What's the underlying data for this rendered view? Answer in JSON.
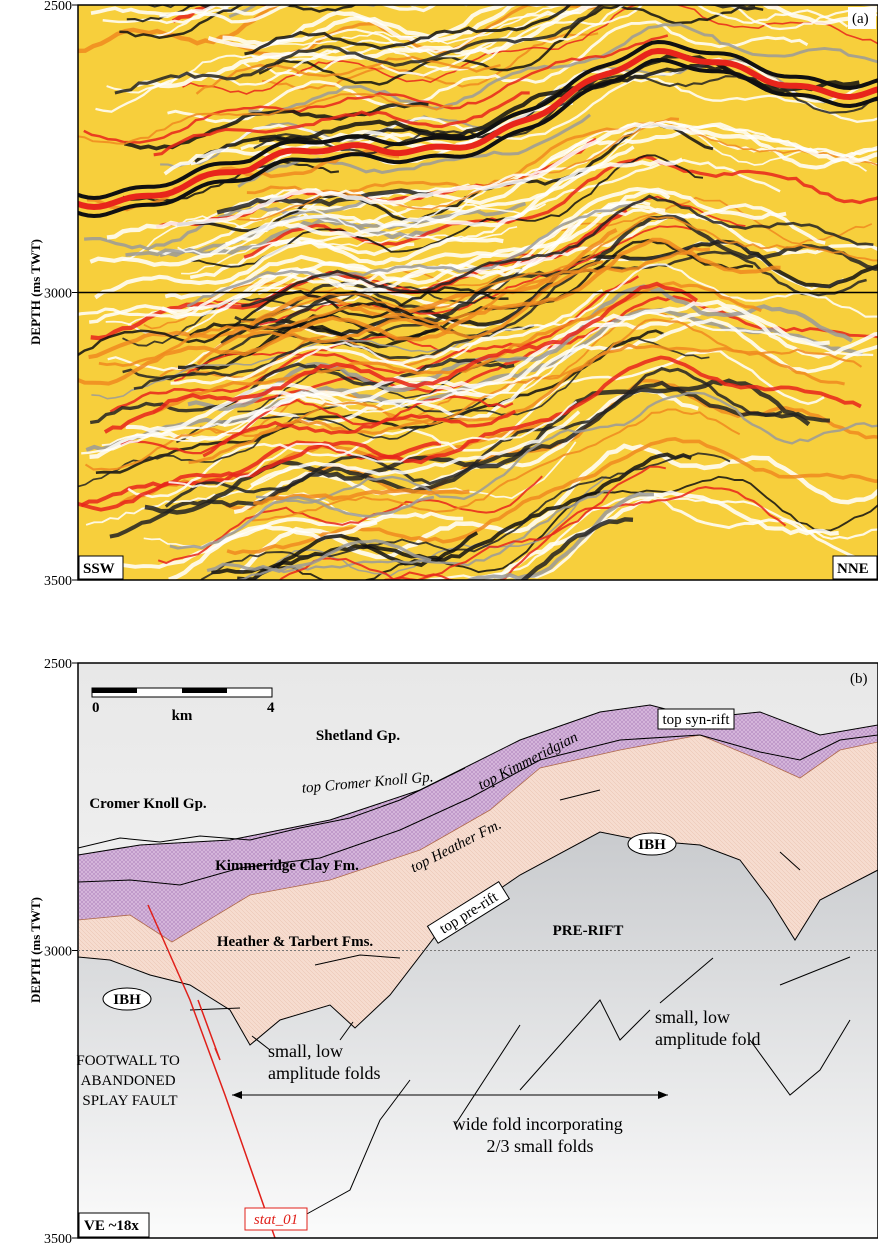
{
  "panels": [
    {
      "label": "(a)",
      "y_axis_label": "DEPTH (ms TWT)",
      "ylim": [
        2500,
        3500
      ],
      "yticks": [
        2500,
        3000,
        3500
      ],
      "left_label": "SSW",
      "right_label": "NNE"
    },
    {
      "label": "(b)",
      "y_axis_label": "DEPTH (ms TWT)",
      "ylim": [
        2500,
        3500
      ],
      "yticks": [
        2500,
        3000,
        3500
      ],
      "scale_bar": {
        "start": "0",
        "unit": "km",
        "end": "4"
      },
      "vertical_exaggeration": "VE ~18x",
      "formations": [
        "Shetland Gp.",
        "Cromer Knoll Gp.",
        "Kimmeridge Clay Fm.",
        "Heather & Tarbert Fms.",
        "PRE-RIFT"
      ],
      "horizons": [
        "top syn-rift",
        "top Cromer Knoll Gp.",
        "top Kimmeridgian",
        "top Heather Fm.",
        "top pre-rift"
      ],
      "ibh": [
        "IBH",
        "IBH"
      ],
      "annotations": [
        [
          "FOOTWALL TO",
          "ABANDONED",
          "SPLAY FAULT"
        ],
        [
          "small, low",
          "amplitude folds"
        ],
        [
          "small, low",
          "amplitude fold"
        ],
        [
          "wide fold incorporating",
          "2/3 small folds"
        ]
      ],
      "fault": "stat_01"
    }
  ]
}
